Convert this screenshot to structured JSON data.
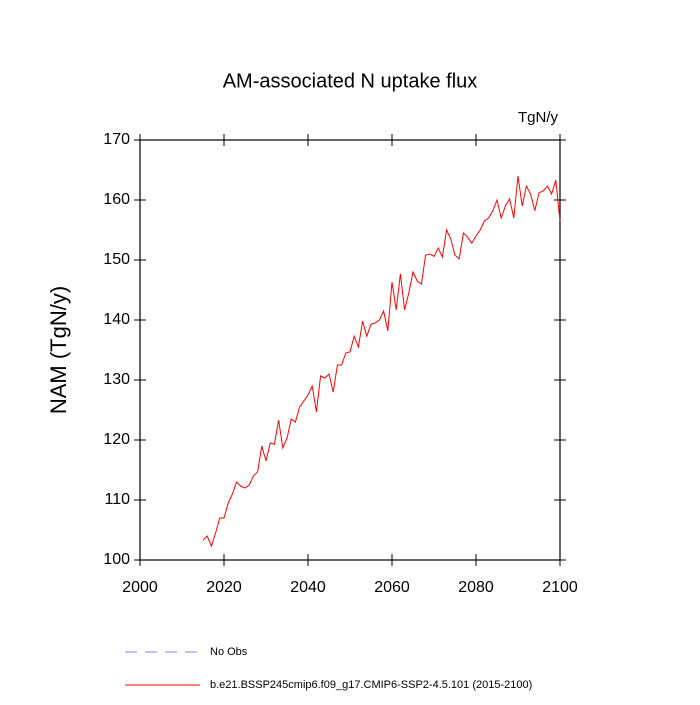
{
  "chart_data": {
    "type": "line",
    "title": "AM-associated N uptake flux",
    "units_label": "TgN/y",
    "y_label": "NAM  (TgN/y)",
    "x": [
      2015,
      2016,
      2017,
      2018,
      2019,
      2020,
      2021,
      2022,
      2023,
      2024,
      2025,
      2026,
      2027,
      2028,
      2029,
      2030,
      2031,
      2032,
      2033,
      2034,
      2035,
      2036,
      2037,
      2038,
      2039,
      2040,
      2041,
      2042,
      2043,
      2044,
      2045,
      2046,
      2047,
      2048,
      2049,
      2050,
      2051,
      2052,
      2053,
      2054,
      2055,
      2056,
      2057,
      2058,
      2059,
      2060,
      2061,
      2062,
      2063,
      2064,
      2065,
      2066,
      2067,
      2068,
      2069,
      2070,
      2071,
      2072,
      2073,
      2074,
      2075,
      2076,
      2077,
      2078,
      2079,
      2080,
      2081,
      2082,
      2083,
      2084,
      2085,
      2086,
      2087,
      2088,
      2089,
      2090,
      2091,
      2092,
      2093,
      2094,
      2095,
      2096,
      2097,
      2098,
      2099,
      2100
    ],
    "series": [
      {
        "name": "b.e21.BSSP245cmip6.f09_g17.CMIP6-SSP2-4.5.101 (2015-2100)",
        "color": "#ff0000",
        "values": [
          103.3,
          104,
          102.3,
          104.5,
          107,
          107,
          109.5,
          111,
          113,
          112.3,
          112,
          112.5,
          114,
          114.7,
          119,
          116.5,
          119.5,
          119.3,
          123.3,
          118.7,
          120.3,
          123.5,
          123,
          125.5,
          126.5,
          127.5,
          129,
          124.7,
          130.7,
          130.3,
          131,
          128,
          132.5,
          132.5,
          134.5,
          134.7,
          137.3,
          135.5,
          139.8,
          137.3,
          139.3,
          139.5,
          140,
          141.5,
          138.2,
          146.3,
          141.7,
          147.7,
          141.7,
          144.5,
          148,
          146.5,
          146,
          150.8,
          151,
          150.6,
          152,
          150.5,
          155,
          153.5,
          150.8,
          150.2,
          154.5,
          153.8,
          152.8,
          154,
          155,
          156.5,
          157,
          158.2,
          160,
          157,
          159,
          160.2,
          157,
          164,
          159,
          162.3,
          161,
          158.2,
          161.2,
          161.5,
          162.3,
          161,
          163.3,
          156.5
        ]
      }
    ],
    "reference": {
      "name": "No Obs",
      "color": "#8080ff",
      "dashed": true
    },
    "xlim": [
      2000,
      2100
    ],
    "xticks": [
      2000,
      2020,
      2040,
      2060,
      2080,
      2100
    ],
    "ylim": [
      100,
      170
    ],
    "yticks": [
      100,
      110,
      120,
      130,
      140,
      150,
      160,
      170
    ]
  }
}
